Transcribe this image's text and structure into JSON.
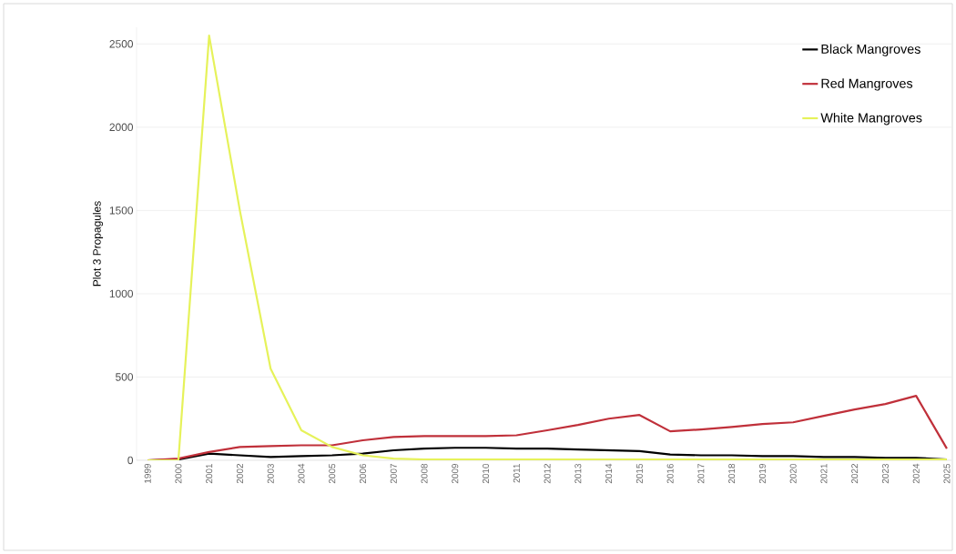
{
  "chart_data": {
    "type": "line",
    "ylabel": "Plot 3 Propagules",
    "categories": [
      "1999",
      "2000",
      "2001",
      "2002",
      "2003",
      "2004",
      "2005",
      "2006",
      "2007",
      "2008",
      "2009",
      "2010",
      "2011",
      "2012",
      "2013",
      "2014",
      "2015",
      "2016",
      "2017",
      "2018",
      "2019",
      "2020",
      "2021",
      "2022",
      "2023",
      "2024",
      "2025"
    ],
    "series": [
      {
        "name": "Black Mangroves",
        "color": "#000000",
        "values": [
          0,
          5,
          40,
          30,
          20,
          25,
          30,
          40,
          60,
          70,
          75,
          75,
          70,
          70,
          65,
          60,
          55,
          35,
          30,
          30,
          25,
          25,
          20,
          20,
          15,
          15,
          5
        ]
      },
      {
        "name": "Red Mangroves",
        "color": "#c0303a",
        "values": [
          0,
          10,
          50,
          80,
          85,
          90,
          90,
          120,
          140,
          145,
          145,
          145,
          150,
          180,
          212,
          250,
          272,
          174,
          185,
          200,
          218,
          228,
          267,
          305,
          338,
          387,
          70
        ]
      },
      {
        "name": "White Mangroves",
        "color": "#e6f25a",
        "values": [
          0,
          0,
          2550,
          1500,
          550,
          180,
          80,
          30,
          10,
          5,
          5,
          5,
          5,
          5,
          5,
          5,
          5,
          5,
          5,
          5,
          5,
          5,
          5,
          5,
          5,
          5,
          5
        ]
      }
    ],
    "ylim": [
      0,
      2600
    ],
    "yticks": [
      0,
      500,
      1000,
      1500,
      2000,
      2500
    ],
    "grid": "y",
    "legend": "top right",
    "marker": "none",
    "line_style": "solid"
  }
}
